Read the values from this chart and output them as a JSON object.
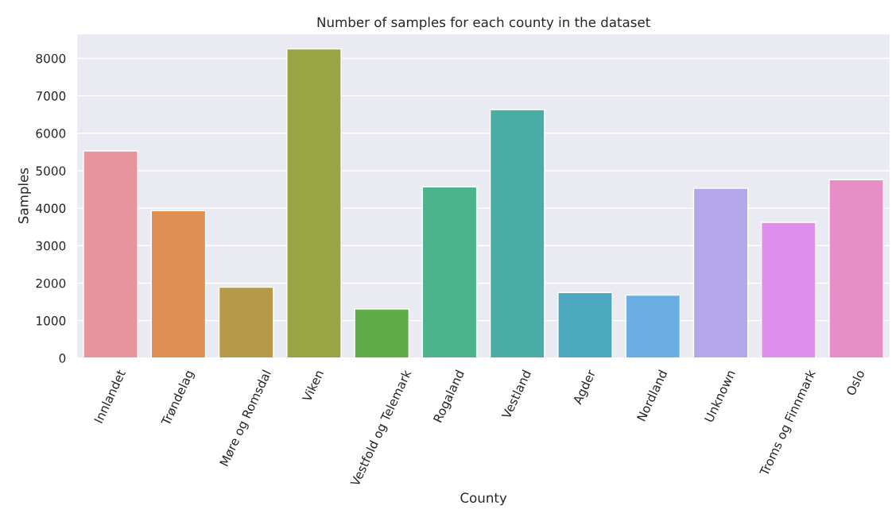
{
  "chart_data": {
    "type": "bar",
    "title": "Number of samples for each county in the dataset",
    "xlabel": "County",
    "ylabel": "Samples",
    "categories": [
      "Innlandet",
      "Trøndelag",
      "Møre og Romsdal",
      "Viken",
      "Vestfold og Telemark",
      "Rogaland",
      "Vestland",
      "Agder",
      "Nordland",
      "Unknown",
      "Troms og Finnmark",
      "Oslo"
    ],
    "values": [
      5530,
      3930,
      1890,
      8250,
      1310,
      4570,
      6630,
      1750,
      1680,
      4530,
      3620,
      4760
    ],
    "colors": [
      "#e8949e",
      "#de8f51",
      "#b59a49",
      "#99a545",
      "#5fac47",
      "#4db38c",
      "#4aaca5",
      "#4ca8bf",
      "#6aaee3",
      "#b5a7ec",
      "#de8feb",
      "#e88ec6"
    ],
    "ylim": [
      0,
      8660
    ],
    "yticks": [
      0,
      1000,
      2000,
      3000,
      4000,
      5000,
      6000,
      7000,
      8000
    ],
    "grid": "y"
  }
}
